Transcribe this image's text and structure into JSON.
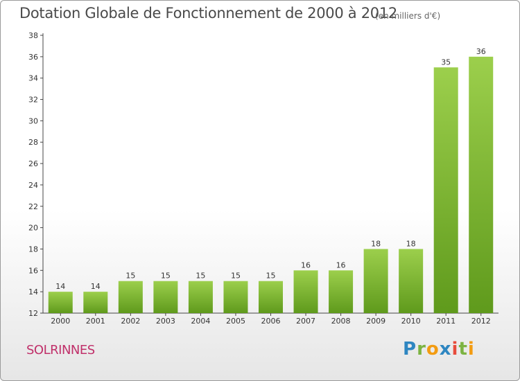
{
  "header": {
    "title": "Dotation Globale de Fonctionnement de 2000 à 2012",
    "unit_note": "(en milliers d'€)"
  },
  "commune": "SOLRINNES",
  "logo": {
    "text": "Proxiti"
  },
  "colors": {
    "bar_light": "#9ccf4c",
    "bar_dark": "#5f9a1c",
    "commune": "#c0306a"
  },
  "chart_data": {
    "type": "bar",
    "title": "Dotation Globale de Fonctionnement de 2000 à 2012",
    "subtitle": "(en milliers d'€)",
    "xlabel": "",
    "ylabel": "",
    "ylim": [
      12,
      38
    ],
    "yticks": [
      12,
      14,
      16,
      18,
      20,
      22,
      24,
      26,
      28,
      30,
      32,
      34,
      36,
      38
    ],
    "grid": false,
    "categories": [
      "2000",
      "2001",
      "2002",
      "2003",
      "2004",
      "2005",
      "2006",
      "2007",
      "2008",
      "2009",
      "2010",
      "2011",
      "2012"
    ],
    "values": [
      14,
      14,
      15,
      15,
      15,
      15,
      15,
      16,
      16,
      18,
      18,
      35,
      36
    ],
    "data_labels": [
      "14",
      "14",
      "15",
      "15",
      "15",
      "15",
      "15",
      "16",
      "16",
      "18",
      "18",
      "35",
      "36"
    ]
  }
}
